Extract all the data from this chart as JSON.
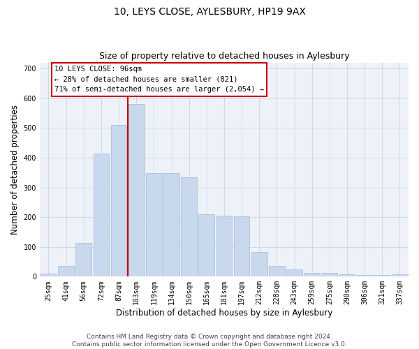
{
  "title": "10, LEYS CLOSE, AYLESBURY, HP19 9AX",
  "subtitle": "Size of property relative to detached houses in Aylesbury",
  "xlabel": "Distribution of detached houses by size in Aylesbury",
  "ylabel": "Number of detached properties",
  "bar_labels": [
    "25sqm",
    "41sqm",
    "56sqm",
    "72sqm",
    "87sqm",
    "103sqm",
    "119sqm",
    "134sqm",
    "150sqm",
    "165sqm",
    "181sqm",
    "197sqm",
    "212sqm",
    "228sqm",
    "243sqm",
    "259sqm",
    "275sqm",
    "290sqm",
    "306sqm",
    "321sqm",
    "337sqm"
  ],
  "bar_values": [
    10,
    35,
    113,
    415,
    510,
    580,
    347,
    347,
    335,
    210,
    205,
    202,
    83,
    35,
    25,
    13,
    13,
    7,
    5,
    5,
    8
  ],
  "bar_color": "#c9d9ed",
  "bar_edge_color": "#a0b8d8",
  "grid_color": "#d0d8e8",
  "background_color": "#eef2f8",
  "vline_x": 4.5,
  "vline_color": "#cc0000",
  "annotation_line1": "10 LEYS CLOSE: 96sqm",
  "annotation_line2": "← 28% of detached houses are smaller (821)",
  "annotation_line3": "71% of semi-detached houses are larger (2,054) →",
  "ylim": [
    0,
    720
  ],
  "yticks": [
    0,
    100,
    200,
    300,
    400,
    500,
    600,
    700
  ],
  "footer_text": "Contains HM Land Registry data © Crown copyright and database right 2024.\nContains public sector information licensed under the Open Government Licence v3.0.",
  "title_fontsize": 10,
  "subtitle_fontsize": 9,
  "xlabel_fontsize": 8.5,
  "ylabel_fontsize": 8.5,
  "tick_fontsize": 7,
  "annotation_fontsize": 7.5,
  "footer_fontsize": 6.5
}
